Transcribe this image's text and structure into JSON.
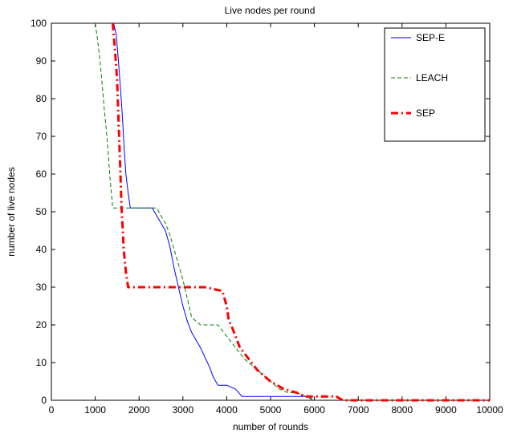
{
  "chart_data": {
    "type": "line",
    "title": "Live nodes per round",
    "xlabel": "number of rounds",
    "ylabel": "number of live nodes",
    "xlim": [
      0,
      10000
    ],
    "ylim": [
      0,
      100
    ],
    "xticks": [
      0,
      1000,
      2000,
      3000,
      4000,
      5000,
      6000,
      7000,
      8000,
      9000,
      10000
    ],
    "yticks": [
      0,
      10,
      20,
      30,
      40,
      50,
      60,
      70,
      80,
      90,
      100
    ],
    "grid": false,
    "legend_position": "top-right",
    "series": [
      {
        "name": "SEP-E",
        "color": "#0000ff",
        "line_style": "solid",
        "x": [
          1420,
          1480,
          1530,
          1580,
          1620,
          1660,
          1700,
          1750,
          1800,
          2000,
          2300,
          2500,
          2600,
          2700,
          2800,
          2900,
          3000,
          3100,
          3200,
          3400,
          3600,
          3700,
          3800,
          4000,
          4200,
          4350,
          5000,
          5500,
          5900,
          5950
        ],
        "y": [
          100,
          97,
          90,
          82,
          75,
          67,
          60,
          55,
          51,
          51,
          51,
          47,
          45,
          41,
          35,
          30,
          25,
          21,
          18,
          14,
          9,
          6,
          4,
          4,
          3,
          1,
          1,
          1,
          1,
          0
        ]
      },
      {
        "name": "LEACH",
        "color": "#008000",
        "line_style": "dashed",
        "x": [
          1000,
          1050,
          1100,
          1150,
          1200,
          1250,
          1300,
          1330,
          1400,
          1800,
          2400,
          2500,
          2600,
          2700,
          2800,
          3000,
          3200,
          3400,
          3800,
          4000,
          4200,
          4400,
          4600,
          4800,
          5000,
          5200,
          5400,
          5600,
          5800,
          6000
        ],
        "y": [
          100,
          96,
          91,
          85,
          78,
          72,
          65,
          60,
          51,
          51,
          51,
          49,
          47,
          44,
          40,
          32,
          22,
          20,
          20,
          17,
          14,
          11,
          9,
          7,
          5,
          3,
          2,
          2,
          1,
          0
        ]
      },
      {
        "name": "SEP",
        "color": "#ff0000",
        "line_style": "dashdot",
        "x": [
          1400,
          1450,
          1500,
          1530,
          1570,
          1600,
          1630,
          1650,
          1700,
          1750,
          2500,
          3000,
          3500,
          3900,
          4000,
          4050,
          4100,
          4200,
          4300,
          4500,
          4700,
          5000,
          5300,
          5600,
          5800,
          6500,
          6650,
          6700,
          10000
        ],
        "y": [
          100,
          93,
          85,
          75,
          62,
          51,
          45,
          40,
          34,
          30,
          30,
          30,
          30,
          29,
          25,
          21,
          20,
          17,
          14,
          11,
          8,
          5,
          3,
          2,
          1,
          1,
          0,
          0,
          0
        ]
      }
    ]
  }
}
